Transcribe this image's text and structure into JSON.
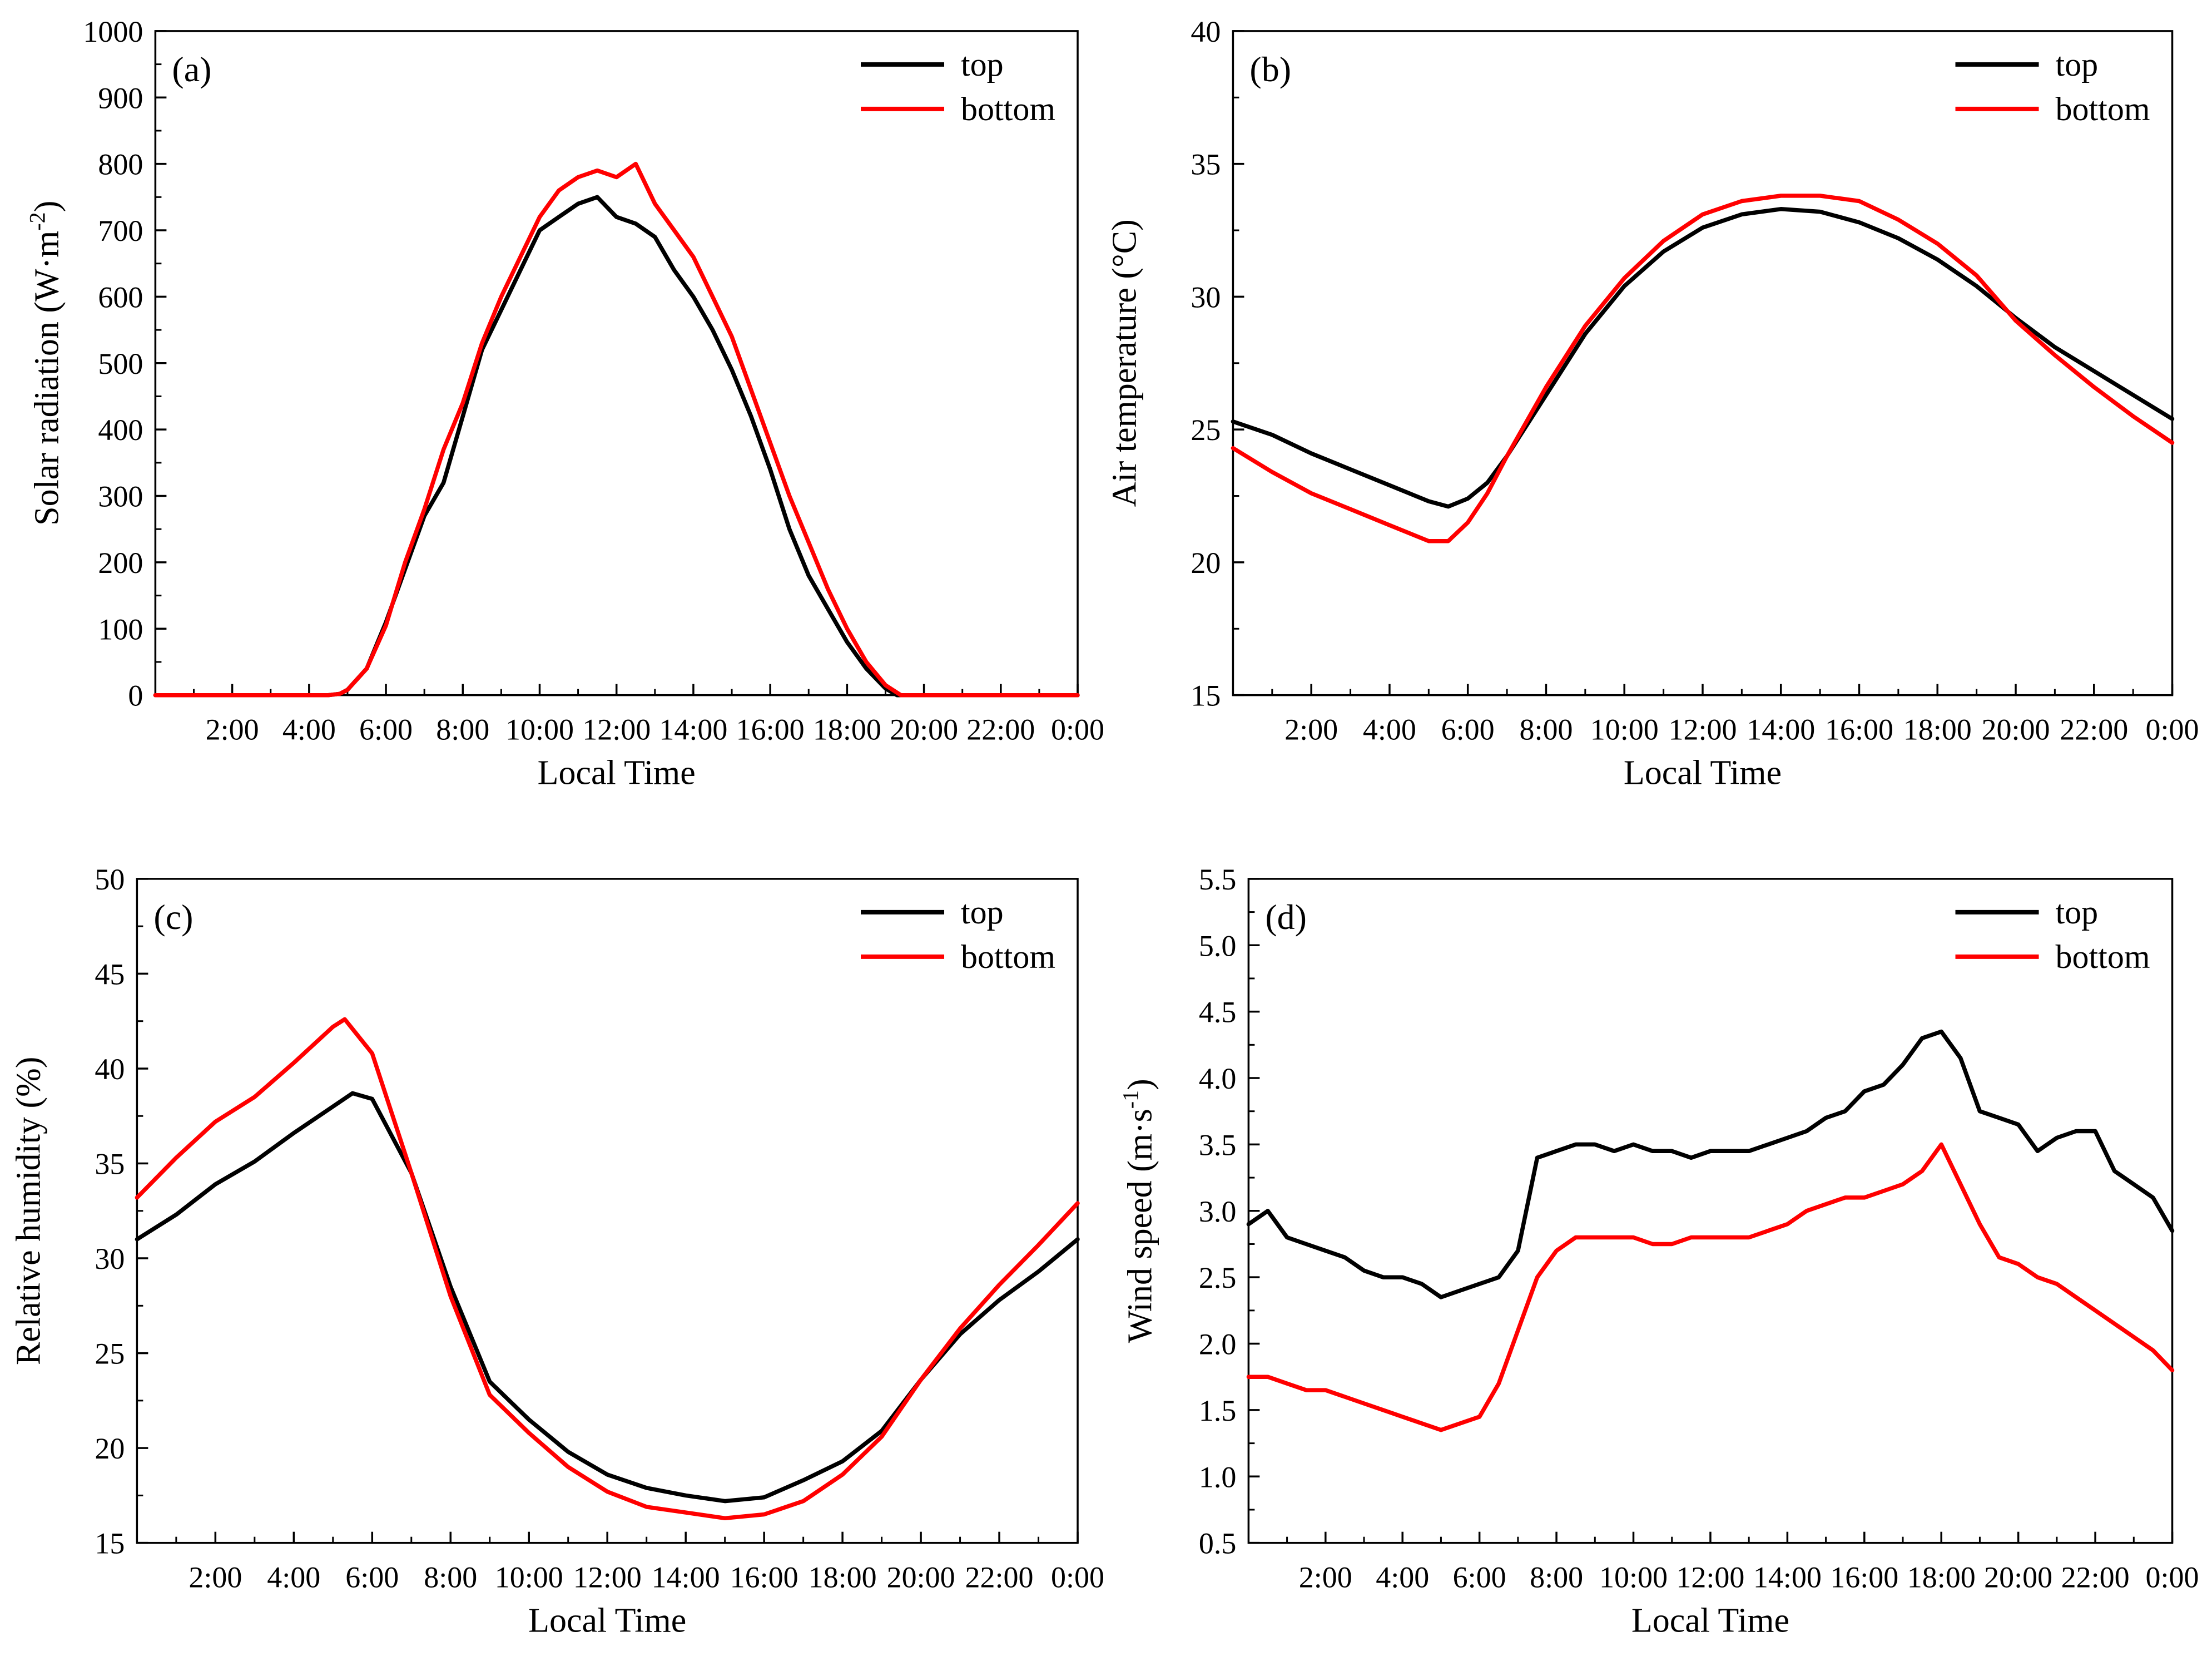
{
  "colors": {
    "top": "#000000",
    "bottom": "#ff0000"
  },
  "chart_data": [
    {
      "type": "line",
      "panel_label": "(a)",
      "xlabel": "Local Time",
      "ylabel": "Solar radiation (W·m⁻²)",
      "ylabel_base": "Solar radiation (W·m",
      "ylabel_sup": "-2",
      "ylabel_tail": ")",
      "xlim": [
        0,
        24
      ],
      "ylim": [
        0,
        1000
      ],
      "x_ticks": [
        2,
        4,
        6,
        8,
        10,
        12,
        14,
        16,
        18,
        20,
        22,
        24
      ],
      "x_tick_labels": [
        "2:00",
        "4:00",
        "6:00",
        "8:00",
        "10:00",
        "12:00",
        "14:00",
        "16:00",
        "18:00",
        "20:00",
        "22:00",
        "0:00"
      ],
      "y_ticks": [
        0,
        100,
        200,
        300,
        400,
        500,
        600,
        700,
        800,
        900,
        1000
      ],
      "y_tick_labels": [
        "0",
        "100",
        "200",
        "300",
        "400",
        "500",
        "600",
        "700",
        "800",
        "900",
        "1000"
      ],
      "legend": {
        "position": "top-right",
        "entries": [
          "top",
          "bottom"
        ]
      },
      "grid": false,
      "series": [
        {
          "name": "top",
          "color": "#000000",
          "x": [
            0,
            4.5,
            4.8,
            5.0,
            5.5,
            6.0,
            6.5,
            7.0,
            7.5,
            8.0,
            8.5,
            9.0,
            9.5,
            10.0,
            10.5,
            11.0,
            11.5,
            12.0,
            12.5,
            13.0,
            13.5,
            14.0,
            14.5,
            15.0,
            15.5,
            16.0,
            16.5,
            17.0,
            17.5,
            18.0,
            18.5,
            19.0,
            19.3,
            20.0,
            24
          ],
          "y": [
            0,
            0,
            2,
            8,
            40,
            110,
            190,
            270,
            320,
            420,
            520,
            580,
            640,
            700,
            720,
            740,
            750,
            720,
            710,
            690,
            640,
            600,
            550,
            490,
            420,
            340,
            250,
            180,
            130,
            80,
            40,
            10,
            0,
            0,
            0
          ]
        },
        {
          "name": "bottom",
          "color": "#ff0000",
          "x": [
            0,
            4.5,
            4.8,
            5.0,
            5.5,
            6.0,
            6.5,
            7.0,
            7.5,
            8.0,
            8.5,
            9.0,
            9.5,
            10.0,
            10.5,
            11.0,
            11.5,
            12.0,
            12.5,
            13.0,
            13.5,
            14.0,
            14.5,
            15.0,
            15.5,
            16.0,
            16.5,
            17.0,
            17.5,
            18.0,
            18.5,
            19.0,
            19.4,
            20.0,
            24
          ],
          "y": [
            0,
            0,
            2,
            8,
            40,
            105,
            200,
            280,
            370,
            440,
            530,
            600,
            660,
            720,
            760,
            780,
            790,
            780,
            800,
            740,
            700,
            660,
            600,
            540,
            460,
            380,
            300,
            230,
            160,
            100,
            50,
            15,
            0,
            0,
            0
          ]
        }
      ]
    },
    {
      "type": "line",
      "panel_label": "(b)",
      "xlabel": "Local Time",
      "ylabel": "Air temperature (°C)",
      "xlim": [
        0,
        24
      ],
      "ylim": [
        15,
        40
      ],
      "x_ticks": [
        2,
        4,
        6,
        8,
        10,
        12,
        14,
        16,
        18,
        20,
        22,
        24
      ],
      "x_tick_labels": [
        "2:00",
        "4:00",
        "6:00",
        "8:00",
        "10:00",
        "12:00",
        "14:00",
        "16:00",
        "18:00",
        "20:00",
        "22:00",
        "0:00"
      ],
      "y_ticks": [
        15,
        20,
        25,
        30,
        35,
        40
      ],
      "y_tick_labels": [
        "15",
        "20",
        "25",
        "30",
        "35",
        "40"
      ],
      "legend": {
        "position": "top-right",
        "entries": [
          "top",
          "bottom"
        ]
      },
      "grid": false,
      "series": [
        {
          "name": "top",
          "color": "#000000",
          "x": [
            0,
            1,
            2,
            3,
            4,
            5,
            5.5,
            6,
            6.5,
            7,
            8,
            9,
            10,
            11,
            12,
            13,
            14,
            15,
            16,
            17,
            18,
            19,
            20,
            21,
            22,
            23,
            24
          ],
          "y": [
            25.3,
            24.8,
            24.1,
            23.5,
            22.9,
            22.3,
            22.1,
            22.4,
            23.0,
            24.0,
            26.3,
            28.6,
            30.4,
            31.7,
            32.6,
            33.1,
            33.3,
            33.2,
            32.8,
            32.2,
            31.4,
            30.4,
            29.2,
            28.1,
            27.2,
            26.3,
            25.4
          ]
        },
        {
          "name": "bottom",
          "color": "#ff0000",
          "x": [
            0,
            1,
            2,
            3,
            4,
            5,
            5.5,
            6,
            6.5,
            7,
            8,
            9,
            10,
            11,
            12,
            13,
            14,
            15,
            16,
            17,
            18,
            19,
            20,
            21,
            22,
            23,
            24
          ],
          "y": [
            24.3,
            23.4,
            22.6,
            22.0,
            21.4,
            20.8,
            20.8,
            21.5,
            22.6,
            24.0,
            26.6,
            28.9,
            30.7,
            32.1,
            33.1,
            33.6,
            33.8,
            33.8,
            33.6,
            32.9,
            32.0,
            30.8,
            29.1,
            27.8,
            26.6,
            25.5,
            24.5
          ]
        }
      ]
    },
    {
      "type": "line",
      "panel_label": "(c)",
      "xlabel": "Local Time",
      "ylabel": "Relative humidity (%)",
      "xlim": [
        0,
        24
      ],
      "ylim": [
        15,
        50
      ],
      "x_ticks": [
        2,
        4,
        6,
        8,
        10,
        12,
        14,
        16,
        18,
        20,
        22,
        24
      ],
      "x_tick_labels": [
        "2:00",
        "4:00",
        "6:00",
        "8:00",
        "10:00",
        "12:00",
        "14:00",
        "16:00",
        "18:00",
        "20:00",
        "22:00",
        "0:00"
      ],
      "y_ticks": [
        15,
        20,
        25,
        30,
        35,
        40,
        45,
        50
      ],
      "y_tick_labels": [
        "15",
        "20",
        "25",
        "30",
        "35",
        "40",
        "45",
        "50"
      ],
      "legend": {
        "position": "top-right",
        "entries": [
          "top",
          "bottom"
        ]
      },
      "grid": false,
      "series": [
        {
          "name": "top",
          "color": "#000000",
          "x": [
            0,
            1,
            2,
            3,
            4,
            5,
            5.5,
            6,
            7,
            8,
            9,
            10,
            11,
            12,
            13,
            14,
            15,
            16,
            17,
            18,
            19,
            20,
            21,
            22,
            23,
            24
          ],
          "y": [
            31,
            32.3,
            33.9,
            35.1,
            36.6,
            38,
            38.7,
            38.4,
            34.5,
            28.5,
            23.5,
            21.5,
            19.8,
            18.6,
            17.9,
            17.5,
            17.2,
            17.4,
            18.3,
            19.3,
            20.9,
            23.6,
            26.0,
            27.8,
            29.3,
            31.0
          ]
        },
        {
          "name": "bottom",
          "color": "#ff0000",
          "x": [
            0,
            1,
            2,
            3,
            4,
            5,
            5.3,
            6,
            7,
            8,
            9,
            10,
            11,
            12,
            13,
            14,
            15,
            16,
            17,
            18,
            19,
            20,
            21,
            22,
            23,
            24
          ],
          "y": [
            33.2,
            35.3,
            37.2,
            38.5,
            40.3,
            42.2,
            42.6,
            40.8,
            34.5,
            28.0,
            22.8,
            20.8,
            19.0,
            17.7,
            16.9,
            16.6,
            16.3,
            16.5,
            17.2,
            18.6,
            20.6,
            23.6,
            26.3,
            28.6,
            30.7,
            32.9
          ]
        }
      ]
    },
    {
      "type": "line",
      "panel_label": "(d)",
      "xlabel": "Local Time",
      "ylabel": "Wind speed (m·s⁻¹)",
      "ylabel_base": "Wind speed (m·s",
      "ylabel_sup": "-1",
      "ylabel_tail": ")",
      "xlim": [
        0,
        24
      ],
      "ylim": [
        0.5,
        5.5
      ],
      "x_ticks": [
        2,
        4,
        6,
        8,
        10,
        12,
        14,
        16,
        18,
        20,
        22,
        24
      ],
      "x_tick_labels": [
        "2:00",
        "4:00",
        "6:00",
        "8:00",
        "10:00",
        "12:00",
        "14:00",
        "16:00",
        "18:00",
        "20:00",
        "22:00",
        "0:00"
      ],
      "y_ticks": [
        0.5,
        1.0,
        1.5,
        2.0,
        2.5,
        3.0,
        3.5,
        4.0,
        4.5,
        5.0,
        5.5
      ],
      "y_tick_labels": [
        "0.5",
        "1.0",
        "1.5",
        "2.0",
        "2.5",
        "3.0",
        "3.5",
        "4.0",
        "4.5",
        "5.0",
        "5.5"
      ],
      "legend": {
        "position": "top-right",
        "entries": [
          "top",
          "bottom"
        ]
      },
      "grid": false,
      "series": [
        {
          "name": "top",
          "color": "#000000",
          "x": [
            0,
            0.5,
            1,
            1.5,
            2,
            2.5,
            3,
            3.5,
            4,
            4.5,
            5,
            5.5,
            6,
            6.5,
            7,
            7.5,
            8,
            8.5,
            9,
            9.5,
            10,
            10.5,
            11,
            11.5,
            12,
            12.5,
            13,
            13.5,
            14,
            14.5,
            15,
            15.5,
            16,
            16.5,
            17,
            17.5,
            18,
            18.5,
            19,
            19.5,
            20,
            20.5,
            21,
            21.5,
            22,
            22.5,
            23,
            23.5,
            24
          ],
          "y": [
            2.9,
            3.0,
            2.8,
            2.75,
            2.7,
            2.65,
            2.55,
            2.5,
            2.5,
            2.45,
            2.35,
            2.4,
            2.45,
            2.5,
            2.7,
            3.4,
            3.45,
            3.5,
            3.5,
            3.45,
            3.5,
            3.45,
            3.45,
            3.4,
            3.45,
            3.45,
            3.45,
            3.5,
            3.55,
            3.6,
            3.7,
            3.75,
            3.9,
            3.95,
            4.1,
            4.3,
            4.35,
            4.15,
            3.75,
            3.7,
            3.65,
            3.45,
            3.55,
            3.6,
            3.6,
            3.3,
            3.2,
            3.1,
            2.85
          ]
        },
        {
          "name": "bottom",
          "color": "#ff0000",
          "x": [
            0,
            0.5,
            1,
            1.5,
            2,
            2.5,
            3,
            3.5,
            4,
            4.5,
            5,
            5.5,
            6,
            6.5,
            7,
            7.5,
            8,
            8.5,
            9,
            9.5,
            10,
            10.5,
            11,
            11.5,
            12,
            12.5,
            13,
            13.5,
            14,
            14.5,
            15,
            15.5,
            16,
            16.5,
            17,
            17.5,
            18,
            18.5,
            19,
            19.5,
            20,
            20.5,
            21,
            21.5,
            22,
            22.5,
            23,
            23.5,
            24
          ],
          "y": [
            1.75,
            1.75,
            1.7,
            1.65,
            1.65,
            1.6,
            1.55,
            1.5,
            1.45,
            1.4,
            1.35,
            1.4,
            1.45,
            1.7,
            2.1,
            2.5,
            2.7,
            2.8,
            2.8,
            2.8,
            2.8,
            2.75,
            2.75,
            2.8,
            2.8,
            2.8,
            2.8,
            2.85,
            2.9,
            3.0,
            3.05,
            3.1,
            3.1,
            3.15,
            3.2,
            3.3,
            3.5,
            3.2,
            2.9,
            2.65,
            2.6,
            2.5,
            2.45,
            2.35,
            2.25,
            2.15,
            2.05,
            1.95,
            1.8
          ]
        }
      ]
    }
  ]
}
